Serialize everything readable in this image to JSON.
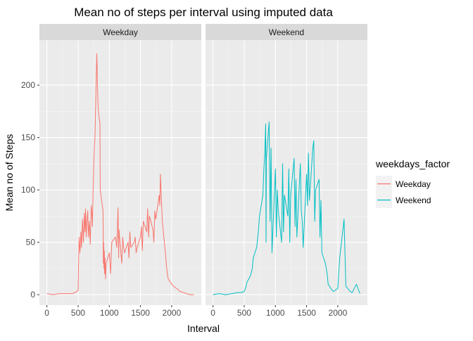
{
  "chart_data": {
    "type": "line",
    "title": "Mean no of steps per interval using imputed data",
    "xlabel": "Interval",
    "ylabel": "Mean no of Steps",
    "xlim": [
      -120,
      2475
    ],
    "ylim": [
      -10,
      243
    ],
    "xticks": [
      0,
      500,
      1000,
      1500,
      2000
    ],
    "yticks": [
      0,
      50,
      100,
      150,
      200
    ],
    "grid": true,
    "legend": {
      "title": "weekdays_factor",
      "position": "right"
    },
    "panels": [
      {
        "name": "Weekday",
        "color": "#F8766D",
        "x": [
          0,
          100,
          200,
          300,
          400,
          450,
          500,
          515,
          530,
          545,
          555,
          570,
          585,
          600,
          610,
          620,
          630,
          640,
          655,
          665,
          680,
          695,
          710,
          720,
          730,
          740,
          750,
          760,
          770,
          780,
          790,
          800,
          805,
          810,
          815,
          820,
          825,
          830,
          835,
          840,
          845,
          850,
          855,
          900,
          905,
          910,
          915,
          920,
          925,
          930,
          940,
          950,
          1000,
          1020,
          1040,
          1100,
          1120,
          1140,
          1150,
          1155,
          1200,
          1215,
          1230,
          1245,
          1300,
          1315,
          1330,
          1345,
          1400,
          1415,
          1430,
          1445,
          1500,
          1515,
          1530,
          1545,
          1600,
          1615,
          1630,
          1645,
          1700,
          1715,
          1730,
          1745,
          1800,
          1810,
          1820,
          1830,
          1840,
          1850,
          1900,
          1915,
          1930,
          1945,
          2000,
          2030,
          2100,
          2130,
          2200,
          2230,
          2300,
          2330,
          2355
        ],
        "y": [
          1,
          0,
          1,
          1,
          1,
          2,
          4,
          55,
          40,
          60,
          45,
          72,
          50,
          78,
          60,
          82,
          55,
          68,
          80,
          55,
          70,
          48,
          85,
          78,
          65,
          95,
          120,
          140,
          150,
          178,
          205,
          230,
          218,
          200,
          190,
          180,
          175,
          172,
          170,
          168,
          165,
          165,
          100,
          80,
          30,
          50,
          25,
          42,
          20,
          35,
          15,
          30,
          40,
          20,
          50,
          55,
          45,
          83,
          35,
          62,
          30,
          55,
          45,
          40,
          50,
          35,
          60,
          45,
          50,
          55,
          40,
          45,
          55,
          65,
          42,
          70,
          60,
          82,
          55,
          75,
          62,
          50,
          80,
          72,
          95,
          85,
          115,
          100,
          85,
          70,
          40,
          28,
          20,
          15,
          10,
          8,
          5,
          3,
          2,
          1,
          0,
          0,
          0
        ]
      },
      {
        "name": "Weekend",
        "color": "#00BFC4",
        "x": [
          0,
          100,
          200,
          300,
          400,
          450,
          500,
          530,
          545,
          600,
          630,
          645,
          700,
          730,
          745,
          800,
          815,
          830,
          845,
          850,
          855,
          900,
          915,
          930,
          945,
          1000,
          1015,
          1030,
          1045,
          1100,
          1115,
          1130,
          1145,
          1200,
          1215,
          1230,
          1245,
          1300,
          1315,
          1330,
          1345,
          1400,
          1415,
          1430,
          1445,
          1500,
          1515,
          1530,
          1545,
          1600,
          1615,
          1630,
          1645,
          1700,
          1715,
          1730,
          1745,
          1800,
          1815,
          1830,
          1845,
          1900,
          1930,
          2000,
          2030,
          2100,
          2130,
          2200,
          2230,
          2300,
          2330,
          2355
        ],
        "y": [
          0,
          1,
          0,
          1,
          2,
          2,
          3,
          8,
          12,
          18,
          25,
          35,
          45,
          62,
          75,
          95,
          120,
          135,
          163,
          50,
          130,
          165,
          70,
          140,
          40,
          120,
          55,
          100,
          80,
          50,
          125,
          60,
          95,
          75,
          120,
          50,
          95,
          130,
          65,
          110,
          55,
          125,
          80,
          70,
          45,
          115,
          85,
          135,
          90,
          140,
          147,
          70,
          100,
          110,
          55,
          90,
          40,
          30,
          25,
          20,
          10,
          5,
          3,
          6,
          35,
          72,
          8,
          3,
          2,
          10,
          5,
          1
        ]
      }
    ]
  }
}
